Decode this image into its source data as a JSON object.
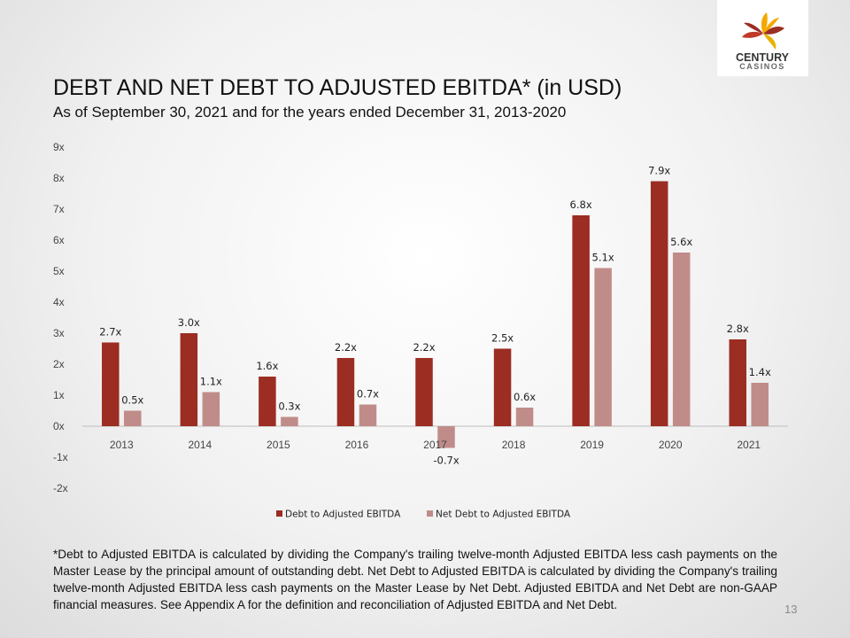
{
  "logo": {
    "line1": "CENTURY",
    "line2": "CASINOS",
    "mark": "pinwheel-flower-icon",
    "colors": [
      "#9b2d23",
      "#f2a900",
      "#c0392b",
      "#e8b100",
      "#7a7a7a"
    ]
  },
  "slide": {
    "title": "DEBT AND NET DEBT TO ADJUSTED EBITDA* (in USD)",
    "subtitle": "As of September 30, 2021 and for the years ended December 31, 2013-2020",
    "footnote": "*Debt to Adjusted EBITDA is calculated by dividing the Company's trailing twelve-month Adjusted EBITDA less cash payments on the Master Lease by the principal amount of outstanding debt. Net Debt to Adjusted EBITDA is calculated by dividing the Company's trailing twelve-month Adjusted EBITDA less cash payments on the Master Lease by Net Debt. Adjusted EBITDA and Net Debt are non-GAAP financial measures. See Appendix A for the definition and reconciliation of Adjusted EBITDA and Net Debt.",
    "page_number": "13"
  },
  "chart_data": {
    "type": "bar",
    "categories": [
      "2013",
      "2014",
      "2015",
      "2016",
      "2017",
      "2018",
      "2019",
      "2020",
      "2021"
    ],
    "series": [
      {
        "name": "Debt to Adjusted EBITDA",
        "color": "#9b2d23",
        "values": [
          2.7,
          3.0,
          1.6,
          2.2,
          2.2,
          2.5,
          6.8,
          7.9,
          2.8
        ],
        "labels": [
          "2.7x",
          "3.0x",
          "1.6x",
          "2.2x",
          "2.2x",
          "2.5x",
          "6.8x",
          "7.9x",
          "2.8x"
        ]
      },
      {
        "name": "Net Debt to Adjusted EBITDA",
        "color": "#c08c89",
        "values": [
          0.5,
          1.1,
          0.3,
          0.7,
          -0.7,
          0.6,
          5.1,
          5.6,
          1.4
        ],
        "labels": [
          "0.5x",
          "1.1x",
          "0.3x",
          "0.7x",
          "-0.7x",
          "0.6x",
          "5.1x",
          "5.6x",
          "1.4x"
        ]
      }
    ],
    "ylim": [
      -2,
      9
    ],
    "yticks": [
      9,
      8,
      7,
      6,
      5,
      4,
      3,
      2,
      1,
      0,
      -1,
      -2
    ],
    "ytick_labels": [
      "9x",
      "8x",
      "7x",
      "6x",
      "5x",
      "4x",
      "3x",
      "2x",
      "1x",
      "0x",
      "-1x",
      "-2x"
    ],
    "grid": false,
    "legend_position": "bottom"
  }
}
